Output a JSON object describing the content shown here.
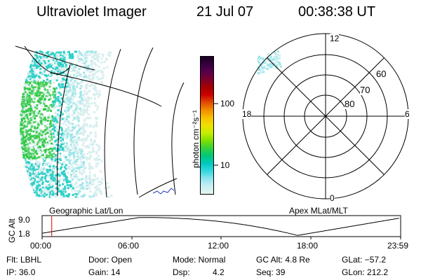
{
  "header": {
    "instrument": "Ultraviolet Imager",
    "date": "21 Jul 07",
    "time": "00:38:38 UT"
  },
  "left_panel_label": "Geographic Lat/Lon",
  "right_panel_label": "Apex MLat/MLT",
  "colorbar": {
    "units_label": "photon cm⁻²s⁻¹",
    "ticks": [
      "100",
      "10"
    ],
    "colors": [
      "#1a0022",
      "#35003d",
      "#58004a",
      "#7c002d",
      "#a50000",
      "#cc0000",
      "#e24a00",
      "#f28c00",
      "#f7c000",
      "#f0e000",
      "#c6ee00",
      "#7fe000",
      "#34d23a",
      "#00c77a",
      "#00c8c0",
      "#34d8e0",
      "#8ee4ee",
      "#c9eef2",
      "#e6f4f4"
    ]
  },
  "polar": {
    "mlt_labels": {
      "top": "12",
      "bottom": "0",
      "left": "18",
      "right": "6"
    },
    "lat_labels": [
      "60",
      "70",
      "80"
    ]
  },
  "altitude_plot": {
    "ylabel": "GC Alt",
    "yticks": [
      "9.0",
      "1.8"
    ],
    "xticks": [
      "00:00",
      "06:00",
      "12:00",
      "18:00",
      "23:59"
    ],
    "current_time_hours": 0.644
  },
  "status": {
    "flt": "Flt: LBHL",
    "ip": "IP: 36.0",
    "door": "Door: Open",
    "gain": "Gain: 14",
    "mode": "Mode: Normal",
    "dsp": "Dsp:",
    "dsp_value": "4.2",
    "gc_alt": "GC Alt: 4.8 Re",
    "seq": "Seq: 39",
    "glat": "GLat: −57.2",
    "glon": "GLon: 212.2"
  }
}
